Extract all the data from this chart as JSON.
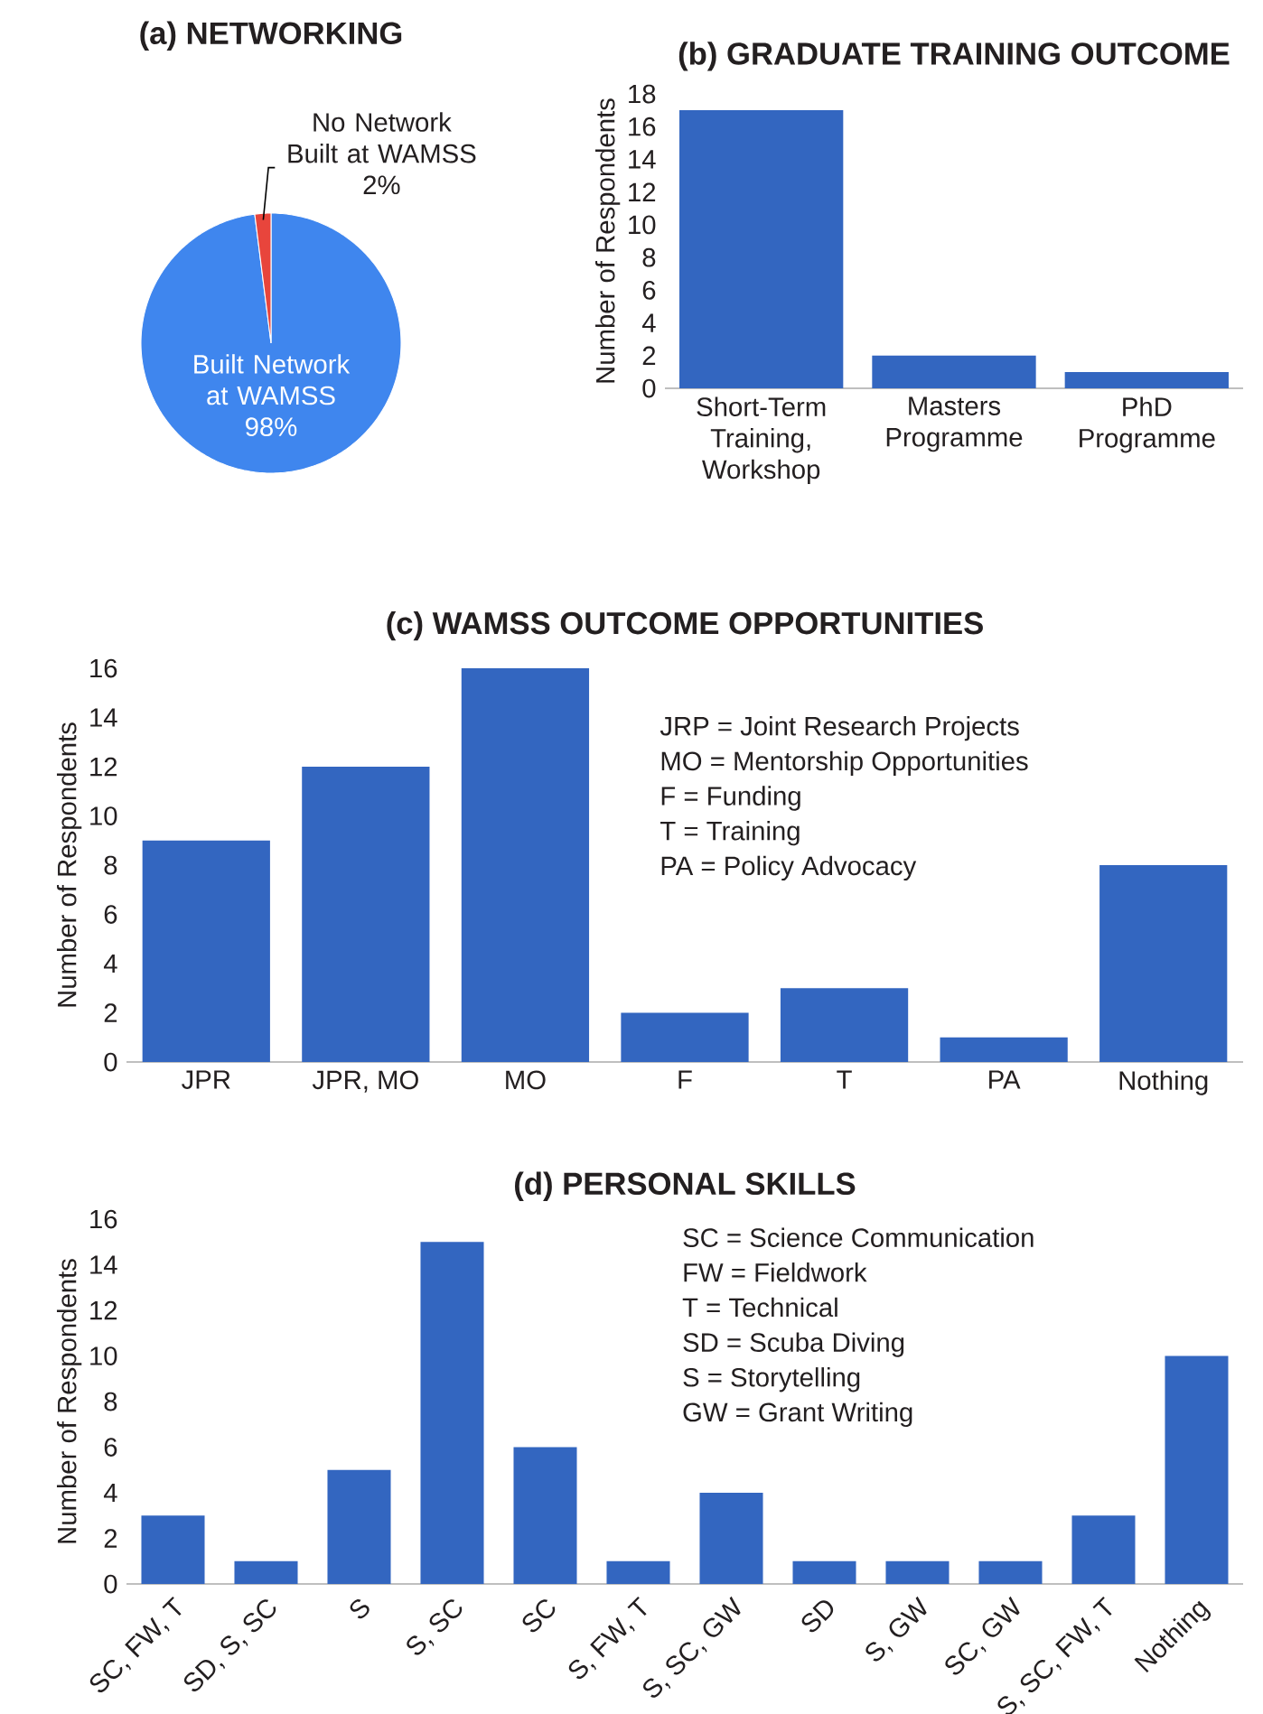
{
  "chart_data": [
    {
      "type": "pie",
      "title": "(a) NETWORKING",
      "categories": [
        "Built Network at WAMSS",
        "No Network Built at WAMSS"
      ],
      "values": [
        98,
        2
      ],
      "colors": [
        "#3f86ee",
        "#e8453c"
      ],
      "value_labels": [
        "98%",
        "2%"
      ]
    },
    {
      "type": "bar",
      "title": "(b) GRADUATE TRAINING OUTCOME",
      "categories": [
        "Short-Term Training, Workshop",
        "Masters Programme",
        "PhD Programme"
      ],
      "values": [
        17,
        2,
        1
      ],
      "color": "#3366c0",
      "ylabel": "Number of Respondents",
      "ylim": [
        0,
        18
      ],
      "yticks": [
        0,
        2,
        4,
        6,
        8,
        10,
        12,
        14,
        16,
        18
      ]
    },
    {
      "type": "bar",
      "title": "(c) WAMSS OUTCOME OPPORTUNITIES",
      "categories": [
        "JPR",
        "JPR, MO",
        "MO",
        "F",
        "T",
        "PA",
        "Nothing"
      ],
      "values": [
        9,
        12,
        16,
        2,
        3,
        1,
        8
      ],
      "color": "#3366c0",
      "ylabel": "Number of Respondents",
      "ylim": [
        0,
        16
      ],
      "yticks": [
        0,
        2,
        4,
        6,
        8,
        10,
        12,
        14,
        16
      ],
      "annotations": [
        "JRP = Joint Research Projects",
        "MO = Mentorship Opportunities",
        "F = Funding",
        "T = Training",
        "PA = Policy Advocacy"
      ]
    },
    {
      "type": "bar",
      "title": "(d) PERSONAL SKILLS",
      "categories": [
        "SC, FW, T",
        "SD, S, SC",
        "S",
        "S, SC",
        "SC",
        "S, FW, T",
        "S, SC, GW",
        "SD",
        "S, GW",
        "SC, GW",
        "S, SC, FW, T",
        "Nothing"
      ],
      "values": [
        3,
        1,
        5,
        15,
        6,
        1,
        4,
        1,
        1,
        1,
        3,
        10
      ],
      "color": "#3366c0",
      "ylabel": "Number of Respondents",
      "ylim": [
        0,
        16
      ],
      "yticks": [
        0,
        2,
        4,
        6,
        8,
        10,
        12,
        14,
        16
      ],
      "annotations": [
        "SC = Science Communication",
        "FW = Fieldwork",
        "T = Technical",
        "SD = Scuba Diving",
        "S = Storytelling",
        "GW = Grant Writing"
      ]
    }
  ]
}
